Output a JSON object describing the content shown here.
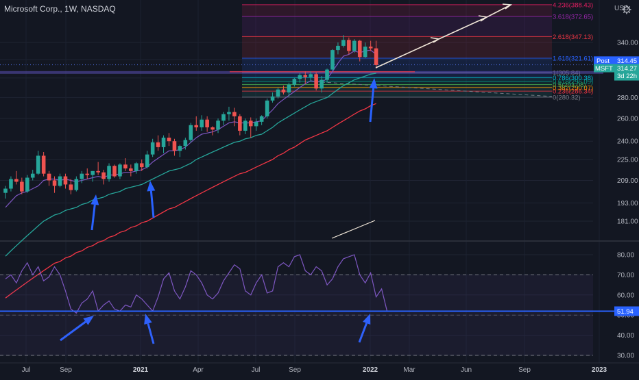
{
  "header": {
    "title": "Microsoft Corp., 1W, NASDAQ",
    "currency": "USD"
  },
  "colors": {
    "background": "#131722",
    "up": "#26a69a",
    "down": "#ef5350",
    "ema_fast": "#7e57c2",
    "ema_mid": "#26a69a",
    "ema_slow": "#f23645",
    "rsi_line": "#7e57c2",
    "arrows": "#2962ff",
    "highlight_line": "#2962ff"
  },
  "price_tags": {
    "post_label": "Post",
    "post_value": "314.45",
    "symbol": "MSFT",
    "last_value": "314.27",
    "countdown": "3d 22h"
  },
  "rsi_tag": "51.94",
  "icons": [
    "settings-icon"
  ],
  "chart_data": [
    {
      "type": "candlestick",
      "title": "Microsoft Corp., 1W, NASDAQ",
      "y_scale": "log",
      "y_ticks": [
        181,
        193,
        209,
        225,
        240,
        260,
        280,
        300,
        320,
        340
      ],
      "x_ticks": [
        "Jul",
        "Sep",
        "2021",
        "Apr",
        "Jul",
        "Sep",
        "2022",
        "Mar",
        "Jun",
        "Sep",
        "2023"
      ],
      "x_tick_labels_bold": [
        "2021",
        "2022",
        "2023"
      ],
      "ohlc": [
        [
          200,
          205,
          196,
          203
        ],
        [
          203,
          212,
          201,
          210
        ],
        [
          210,
          216,
          206,
          208
        ],
        [
          208,
          211,
          199,
          201
        ],
        [
          201,
          213,
          200,
          211
        ],
        [
          211,
          217,
          209,
          214
        ],
        [
          214,
          232,
          213,
          228
        ],
        [
          228,
          231,
          212,
          214
        ],
        [
          214,
          216,
          205,
          209
        ],
        [
          209,
          212,
          200,
          205
        ],
        [
          205,
          214,
          204,
          212
        ],
        [
          212,
          214,
          203,
          206
        ],
        [
          206,
          210,
          199,
          202
        ],
        [
          202,
          212,
          201,
          210
        ],
        [
          210,
          216,
          207,
          214
        ],
        [
          214,
          218,
          210,
          213
        ],
        [
          213,
          216,
          208,
          216
        ],
        [
          216,
          223,
          213,
          215
        ],
        [
          215,
          217,
          206,
          210
        ],
        [
          210,
          222,
          208,
          220
        ],
        [
          220,
          221,
          211,
          212
        ],
        [
          212,
          222,
          210,
          221
        ],
        [
          221,
          226,
          216,
          218
        ],
        [
          218,
          221,
          212,
          216
        ],
        [
          216,
          223,
          214,
          222
        ],
        [
          222,
          225,
          216,
          219
        ],
        [
          219,
          232,
          218,
          229
        ],
        [
          229,
          242,
          227,
          239
        ],
        [
          239,
          245,
          232,
          235
        ],
        [
          235,
          245,
          230,
          243
        ],
        [
          243,
          247,
          236,
          240
        ],
        [
          240,
          242,
          228,
          232
        ],
        [
          232,
          237,
          227,
          236
        ],
        [
          236,
          243,
          233,
          241
        ],
        [
          241,
          256,
          239,
          254
        ],
        [
          254,
          262,
          249,
          252
        ],
        [
          252,
          263,
          249,
          259
        ],
        [
          259,
          262,
          248,
          252
        ],
        [
          252,
          253,
          245,
          250
        ],
        [
          250,
          260,
          247,
          258
        ],
        [
          258,
          266,
          254,
          264
        ],
        [
          264,
          271,
          258,
          266
        ],
        [
          266,
          270,
          253,
          262
        ],
        [
          262,
          264,
          245,
          249
        ],
        [
          249,
          260,
          246,
          258
        ],
        [
          258,
          261,
          243,
          253
        ],
        [
          253,
          260,
          249,
          257
        ],
        [
          257,
          263,
          254,
          262
        ],
        [
          262,
          279,
          260,
          277
        ],
        [
          277,
          285,
          275,
          281
        ],
        [
          281,
          290,
          279,
          288
        ],
        [
          288,
          292,
          283,
          285
        ],
        [
          285,
          295,
          281,
          293
        ],
        [
          293,
          300,
          291,
          299
        ],
        [
          299,
          305,
          295,
          303
        ],
        [
          303,
          307,
          294,
          301
        ],
        [
          301,
          307,
          297,
          304
        ],
        [
          304,
          306,
          287,
          289
        ],
        [
          289,
          302,
          285,
          298
        ],
        [
          298,
          310,
          295,
          309
        ],
        [
          309,
          332,
          308,
          331
        ],
        [
          331,
          340,
          326,
          336
        ],
        [
          336,
          349,
          334,
          343
        ],
        [
          343,
          346,
          326,
          330
        ],
        [
          330,
          344,
          328,
          342
        ],
        [
          342,
          343,
          318,
          323
        ],
        [
          323,
          340,
          322,
          335
        ],
        [
          335,
          342,
          330,
          333
        ],
        [
          333,
          342,
          310,
          314
        ]
      ],
      "ema_fast": [
        190,
        194,
        198,
        200,
        201,
        203,
        205,
        209,
        210,
        210,
        209,
        210,
        209,
        208,
        209,
        210,
        211,
        212,
        211,
        213,
        213,
        214,
        215,
        215,
        216,
        217,
        219,
        223,
        226,
        229,
        232,
        232,
        233,
        235,
        239,
        243,
        246,
        247,
        248,
        250,
        253,
        256,
        257,
        256,
        256,
        256,
        257,
        258,
        263,
        268,
        274,
        278,
        282,
        286,
        290,
        294,
        297,
        296,
        296,
        299,
        307,
        316,
        324,
        326,
        330,
        328,
        330,
        331,
        326
      ],
      "ema_mid": [
        160,
        163,
        166,
        169,
        172,
        175,
        178,
        181,
        183,
        185,
        186,
        188,
        189,
        190,
        192,
        193,
        195,
        196,
        197,
        199,
        200,
        201,
        203,
        204,
        205,
        206,
        208,
        210,
        212,
        214,
        216,
        217,
        218,
        220,
        222,
        225,
        227,
        229,
        231,
        233,
        235,
        237,
        239,
        240,
        242,
        243,
        245,
        246,
        249,
        252,
        256,
        259,
        262,
        265,
        268,
        271,
        274,
        276,
        278,
        280,
        284,
        288,
        292,
        295,
        298,
        300,
        302,
        304,
        305
      ],
      "ema_slow": [
        138,
        140,
        142,
        144,
        146,
        148,
        150,
        152,
        154,
        156,
        157,
        159,
        160,
        162,
        163,
        165,
        166,
        168,
        169,
        171,
        172,
        174,
        175,
        177,
        178,
        180,
        181,
        183,
        185,
        187,
        189,
        190,
        192,
        194,
        196,
        198,
        200,
        202,
        204,
        206,
        208,
        210,
        212,
        214,
        215,
        217,
        219,
        221,
        223,
        225,
        228,
        230,
        233,
        235,
        238,
        241,
        243,
        245,
        247,
        249,
        252,
        255,
        258,
        261,
        264,
        267,
        269,
        272,
        274
      ],
      "fibonacci": {
        "base_label": "0",
        "levels": [
          {
            "ratio": "0",
            "price": 280.32,
            "label": "0(280.32)"
          },
          {
            "ratio": "0.236",
            "price": 286.34,
            "label": "0.236(286.34)"
          },
          {
            "ratio": "0.382",
            "price": 290.07,
            "label": "0.382(290.07)"
          },
          {
            "ratio": "0.5",
            "price": 293.08,
            "label": "0.5(293.08)"
          },
          {
            "ratio": "0.618",
            "price": 296.09,
            "label": "0.618(296.09)"
          },
          {
            "ratio": "0.786",
            "price": 300.38,
            "label": "0.786(300.38)"
          },
          {
            "ratio": "1",
            "price": 305.84,
            "label": "1(305.84)"
          },
          {
            "ratio": "1.618",
            "price": 321.61,
            "label": "1.618(321.61)"
          },
          {
            "ratio": "2.618",
            "price": 347.13,
            "label": "2.618(347.13)"
          },
          {
            "ratio": "3.618",
            "price": 372.65,
            "label": "3.618(372.65)"
          },
          {
            "ratio": "4.236",
            "price": 388.43,
            "label": "4.236(388.43)"
          }
        ]
      },
      "current_price": 314.27
    },
    {
      "type": "line",
      "title": "",
      "y_ticks": [
        30,
        40,
        50,
        60,
        70,
        80
      ],
      "band": [
        30,
        70
      ],
      "highlight_level": 51.94,
      "values": [
        68,
        70,
        66,
        72,
        76,
        70,
        74,
        67,
        69,
        74,
        70,
        62,
        53,
        51,
        56,
        58,
        62,
        52,
        55,
        57,
        53,
        52,
        55,
        54,
        60,
        58,
        55,
        52,
        59,
        68,
        71,
        62,
        58,
        64,
        72,
        70,
        66,
        60,
        58,
        61,
        67,
        71,
        75,
        73,
        62,
        60,
        66,
        70,
        61,
        62,
        74,
        76,
        74,
        79,
        80,
        72,
        70,
        74,
        72,
        65,
        68,
        74,
        78,
        79,
        80,
        70,
        66,
        71,
        59,
        63,
        52
      ]
    }
  ]
}
